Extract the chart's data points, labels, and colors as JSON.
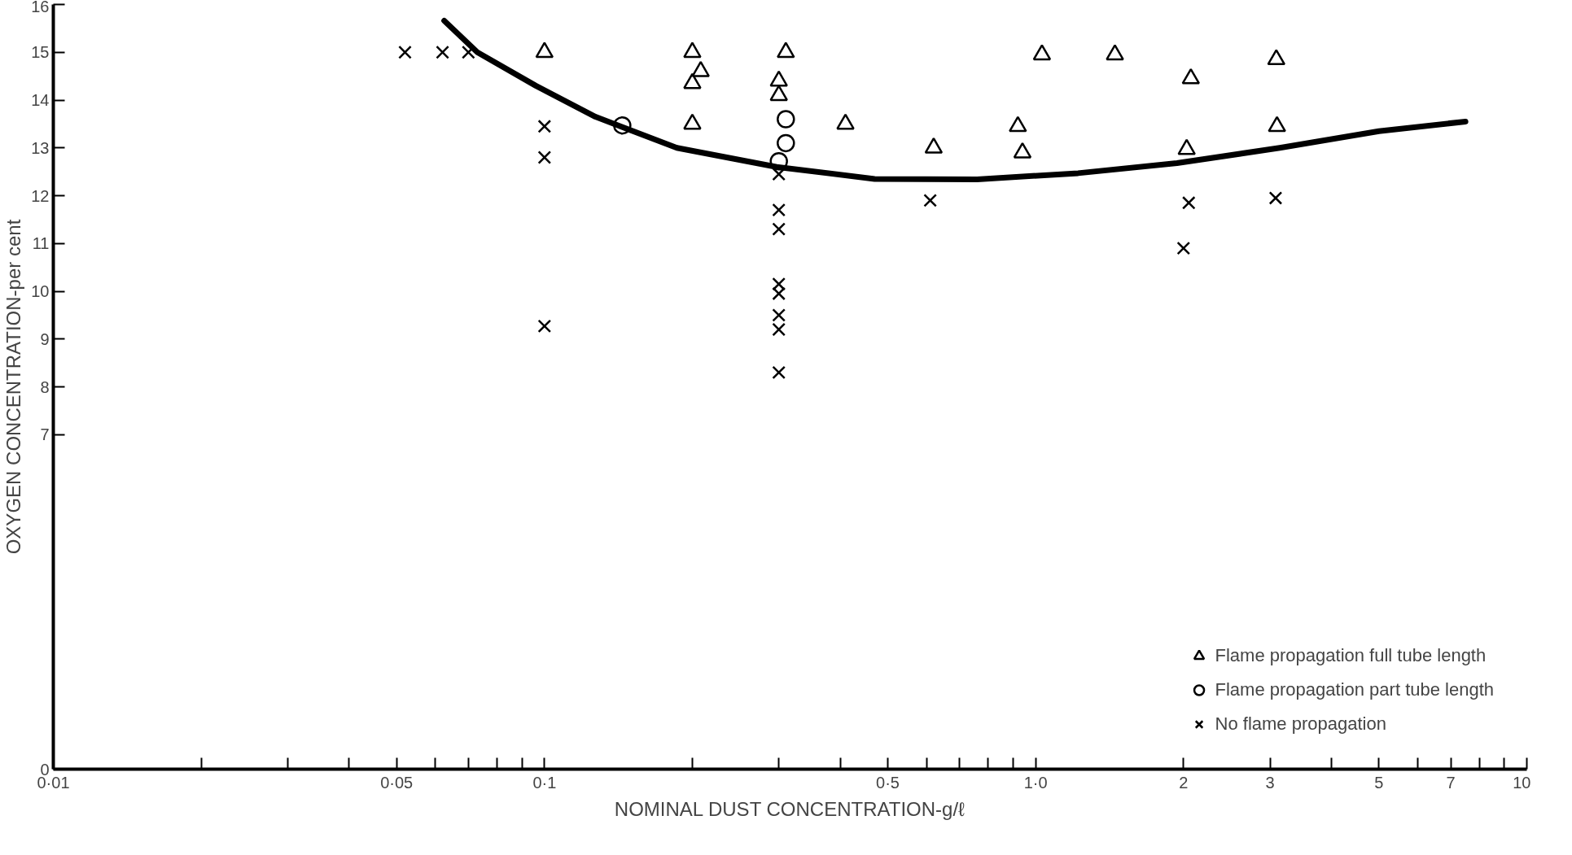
{
  "chart_data": {
    "type": "scatter",
    "xlabel": "NOMINAL DUST CONCENTRATION-g/ℓ",
    "ylabel": "OXYGEN CONCENTRATION-per cent",
    "log": "x",
    "grid": false,
    "legend": "bottom right",
    "xlim": [
      0.01,
      10
    ],
    "ylim": [
      0,
      16
    ],
    "xticks": [
      {
        "value": 0.01,
        "label": "0·01"
      },
      {
        "value": 0.02,
        "label": null
      },
      {
        "value": 0.03,
        "label": null
      },
      {
        "value": 0.04,
        "label": null
      },
      {
        "value": 0.05,
        "label": "0·05"
      },
      {
        "value": 0.06,
        "label": null
      },
      {
        "value": 0.07,
        "label": null
      },
      {
        "value": 0.08,
        "label": null
      },
      {
        "value": 0.09,
        "label": null
      },
      {
        "value": 0.1,
        "label": "0·1"
      },
      {
        "value": 0.2,
        "label": null
      },
      {
        "value": 0.3,
        "label": null
      },
      {
        "value": 0.4,
        "label": null
      },
      {
        "value": 0.5,
        "label": "0·5"
      },
      {
        "value": 0.6,
        "label": null
      },
      {
        "value": 0.7,
        "label": null
      },
      {
        "value": 0.8,
        "label": null
      },
      {
        "value": 0.9,
        "label": null
      },
      {
        "value": 1,
        "label": "1·0"
      },
      2,
      3,
      {
        "value": 4,
        "label": null
      },
      5,
      {
        "value": 6,
        "label": null
      },
      7,
      {
        "value": 8,
        "label": null
      },
      {
        "value": 9,
        "label": null
      },
      10
    ],
    "yticks": [
      0,
      7,
      8,
      9,
      10,
      11,
      12,
      13,
      14,
      15,
      16
    ],
    "series": [
      {
        "name": "Flame propagation full tube length",
        "marker": "triangle",
        "color": "#000000",
        "x": [
          0.1,
          0.2,
          0.208,
          0.2,
          0.2,
          0.31,
          0.3,
          0.3,
          0.41,
          0.62,
          0.92,
          0.94,
          1.03,
          1.45,
          2.07,
          2.03,
          3.09,
          3.1
        ],
        "values": [
          15.0,
          15.0,
          14.6,
          14.35,
          13.5,
          15.0,
          14.4,
          14.1,
          13.5,
          13.0,
          13.45,
          12.9,
          14.95,
          14.95,
          14.45,
          12.97,
          14.85,
          13.45
        ]
      },
      {
        "name": "Flame propagation part tube length",
        "marker": "circle",
        "color": "#000000",
        "x": [
          0.144,
          0.31,
          0.31,
          0.3
        ],
        "values": [
          13.47,
          13.6,
          13.1,
          12.72
        ]
      },
      {
        "name": "No flame propagation",
        "marker": "cross",
        "color": "#000000",
        "x": [
          0.052,
          0.062,
          0.07,
          0.1,
          0.1,
          0.1,
          0.3,
          0.3,
          0.3,
          0.3,
          0.3,
          0.3,
          0.3,
          0.3,
          0.61,
          2.05,
          2.0,
          3.08
        ],
        "values": [
          15.0,
          15.0,
          15.0,
          13.45,
          12.8,
          9.27,
          12.45,
          11.7,
          11.3,
          10.15,
          9.95,
          9.5,
          9.2,
          8.3,
          11.9,
          11.85,
          10.9,
          11.95
        ]
      },
      {
        "type": "line",
        "marker": "none",
        "color": "#000000",
        "x": [
          0.0625,
          0.073,
          0.096,
          0.127,
          0.186,
          0.297,
          0.47,
          0.76,
          1.22,
          1.94,
          3.14,
          5.0,
          7.5
        ],
        "values": [
          15.66,
          15.0,
          14.3,
          13.65,
          13.0,
          12.6,
          12.35,
          12.34,
          12.47,
          12.68,
          13.0,
          13.35,
          13.55
        ]
      }
    ]
  }
}
